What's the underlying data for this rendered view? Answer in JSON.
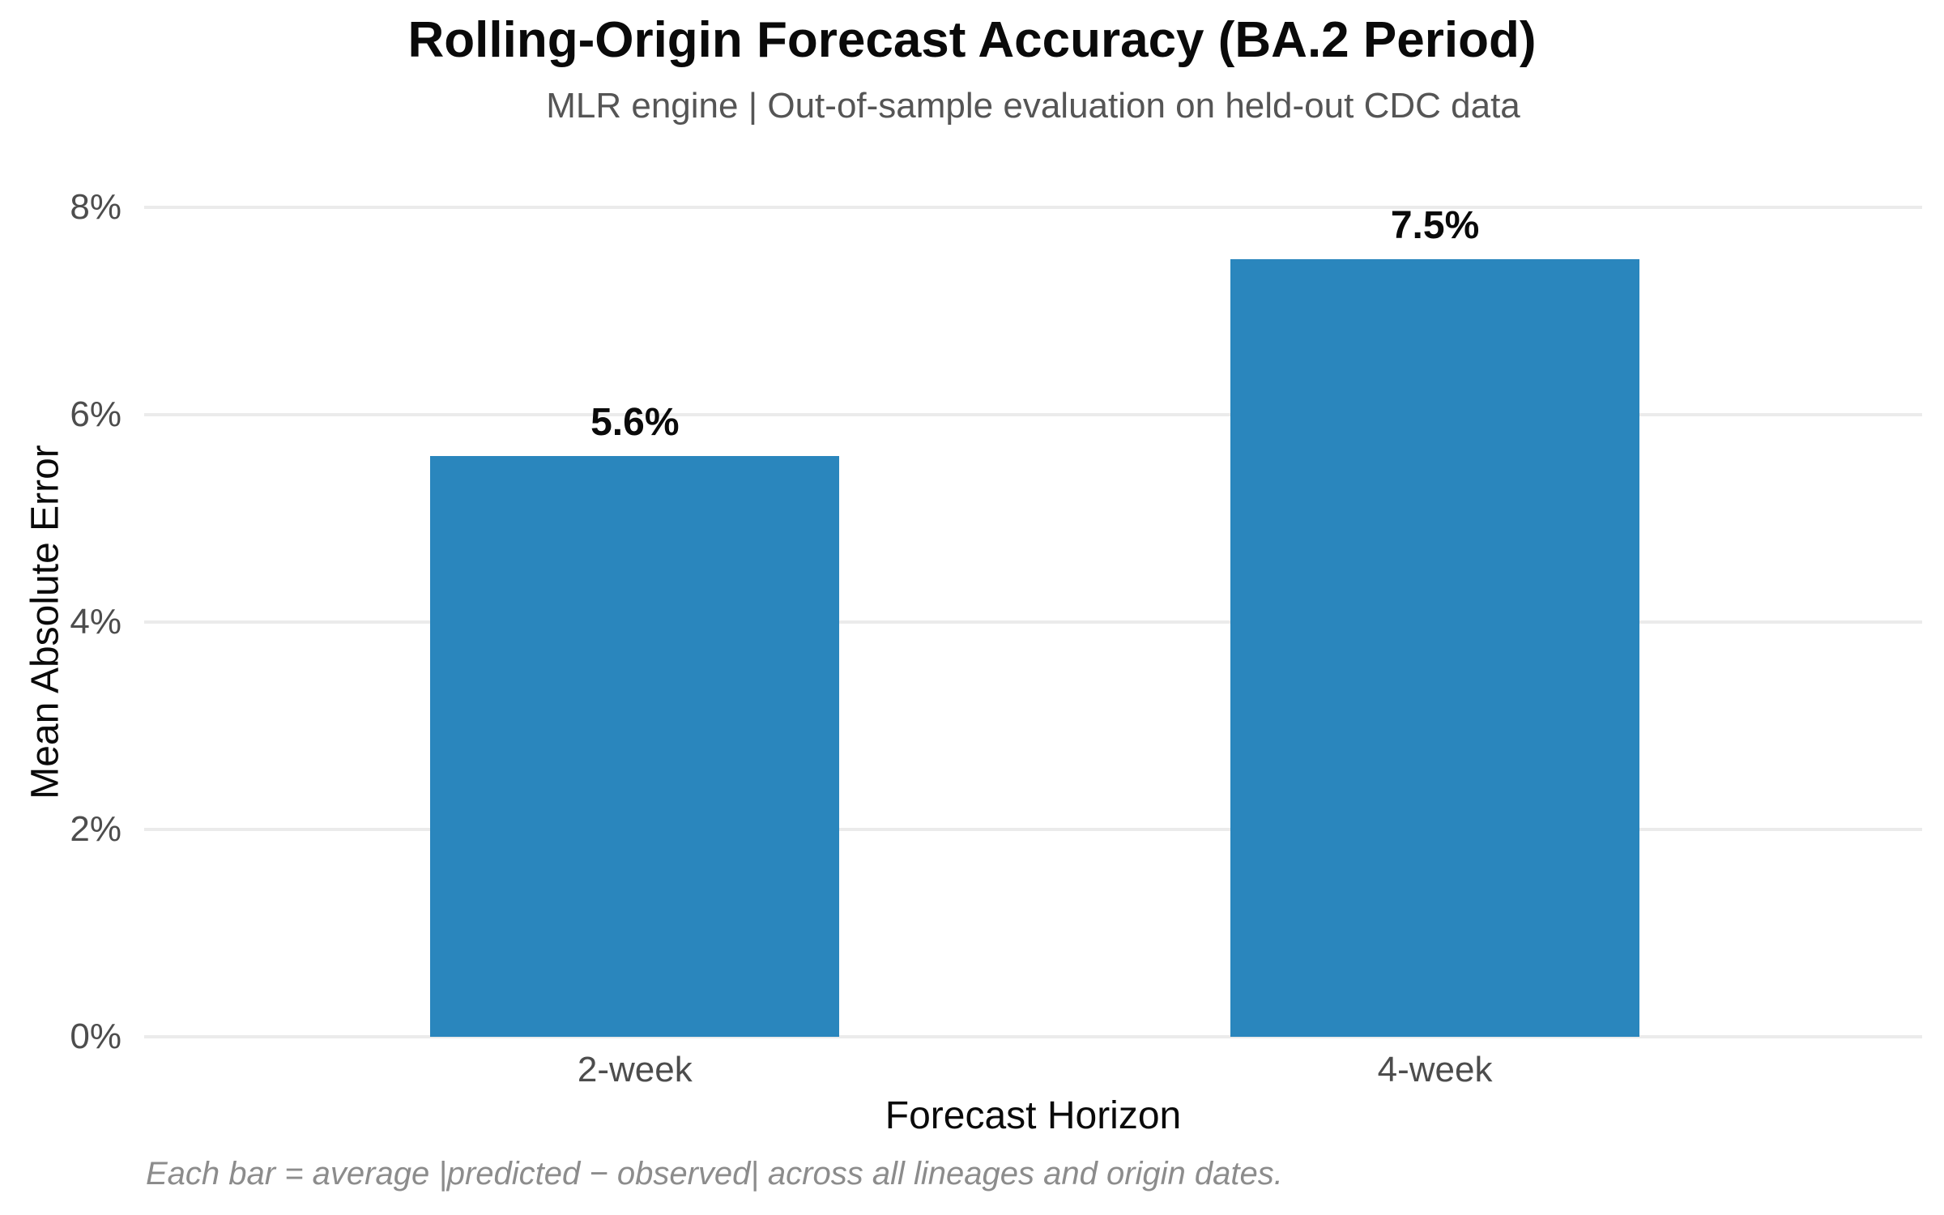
{
  "chart_data": {
    "type": "bar",
    "title": "Rolling-Origin Forecast Accuracy (BA.2 Period)",
    "subtitle": "MLR engine | Out-of-sample evaluation on held-out CDC data",
    "categories": [
      "2-week",
      "4-week"
    ],
    "values": [
      5.6,
      7.5
    ],
    "value_labels": [
      "5.6%",
      "7.5%"
    ],
    "xlabel": "Forecast Horizon",
    "ylabel": "Mean Absolute Error",
    "ylim": [
      0,
      8
    ],
    "yticks": [
      {
        "value": 0,
        "label": "0%"
      },
      {
        "value": 2,
        "label": "2%"
      },
      {
        "value": 4,
        "label": "4%"
      },
      {
        "value": 6,
        "label": "6%"
      },
      {
        "value": 8,
        "label": "8%"
      }
    ],
    "footnote": "Each bar = average |predicted − observed| across all lineages and origin dates.",
    "bar_color": "#2a86bd",
    "grid": true,
    "gridline_color": "#ebebeb",
    "legend_position": "none",
    "background_color": "#ffffff"
  }
}
